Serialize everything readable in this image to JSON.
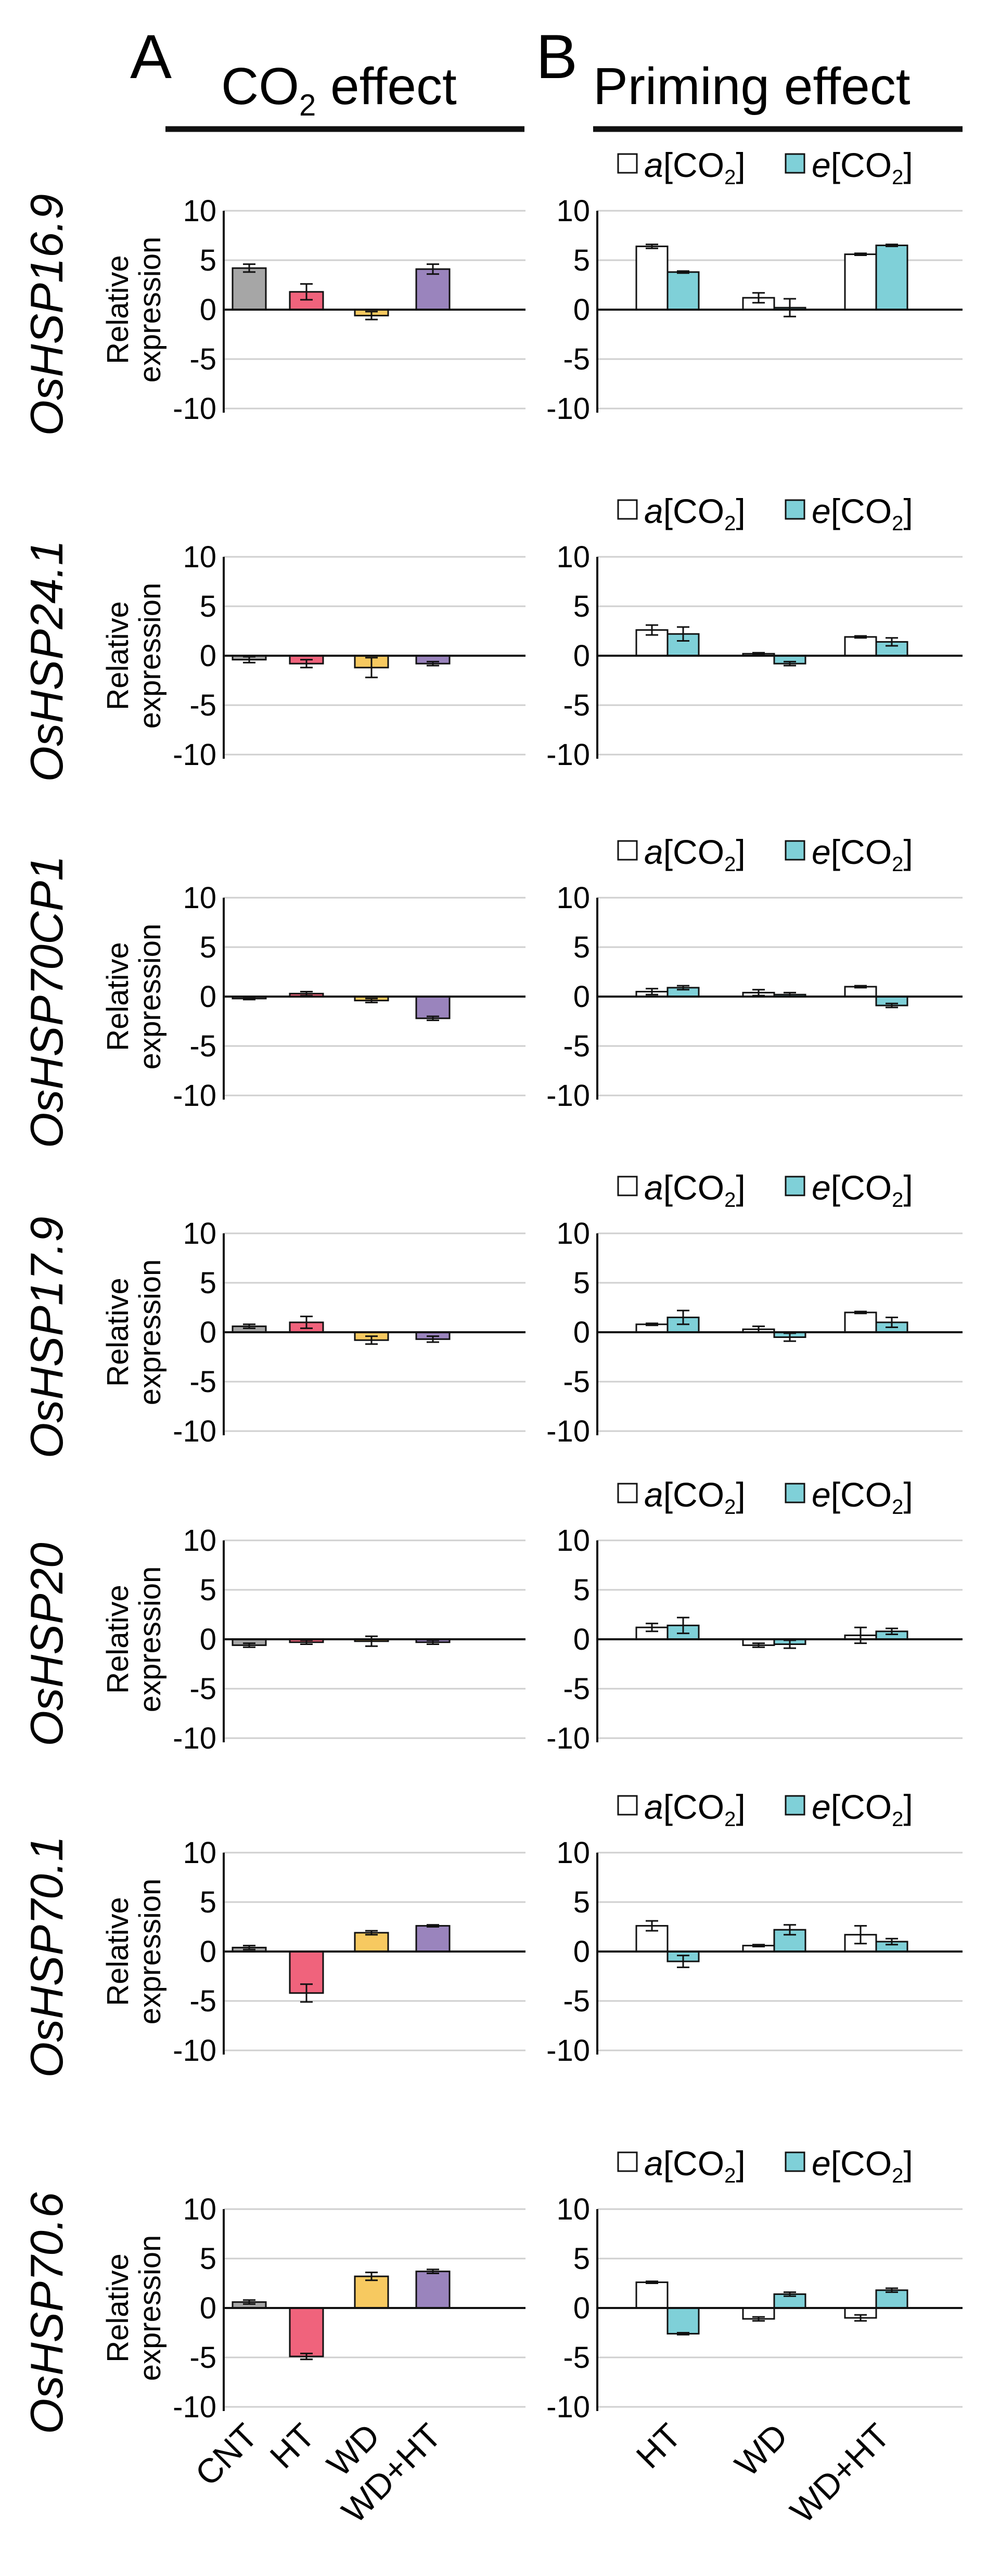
{
  "panels": {
    "A": {
      "letter": "A",
      "title_prefix": "CO",
      "title_sub": "2",
      "title_suffix": " effect"
    },
    "B": {
      "letter": "B",
      "title": "Priming effect"
    }
  },
  "legend": {
    "ambient": {
      "italic": "a",
      "bracket_open": "[CO",
      "sub": "2",
      "bracket_close": "]"
    },
    "elevated": {
      "italic": "e",
      "bracket_open": "[CO",
      "sub": "2",
      "bracket_close": "]"
    }
  },
  "y_axis_label_line1": "Relative",
  "y_axis_label_line2": "expression",
  "colors": {
    "CNT": "#a6a6a6",
    "HT": "#f0637c",
    "WD": "#f7c960",
    "WD+HT": "#9a84bd",
    "ambient": "#ffffff",
    "elevated": "#7fd0d8",
    "axis": "#111111",
    "grid": "#cfcfcf"
  },
  "chart_data": {
    "type": "bar",
    "ylim": [
      -10,
      10
    ],
    "yticks": [
      "10",
      "5",
      "0",
      "-5",
      "-10"
    ],
    "panelA_categories": [
      "CNT",
      "HT",
      "WD",
      "WD+HT"
    ],
    "panelB_categories": [
      "HT",
      "WD",
      "WD+HT"
    ],
    "genes": [
      {
        "name": "OsHSP16.9",
        "co2": {
          "values": [
            4.2,
            1.8,
            -0.6,
            4.1
          ],
          "errors": [
            0.4,
            0.8,
            0.4,
            0.5
          ]
        },
        "priming": {
          "ambient": [
            6.4,
            1.2,
            5.6
          ],
          "ambient_err": [
            0.2,
            0.5,
            0.1
          ],
          "elevated": [
            3.8,
            0.2,
            6.5
          ],
          "elevated_err": [
            0.1,
            0.9,
            0.1
          ]
        }
      },
      {
        "name": "OsHSP24.1",
        "co2": {
          "values": [
            -0.4,
            -0.8,
            -1.2,
            -0.8
          ],
          "errors": [
            0.3,
            0.4,
            1.0,
            0.2
          ]
        },
        "priming": {
          "ambient": [
            2.6,
            0.2,
            1.9
          ],
          "ambient_err": [
            0.5,
            0.1,
            0.1
          ],
          "elevated": [
            2.2,
            -0.8,
            1.4
          ],
          "elevated_err": [
            0.7,
            0.2,
            0.4
          ]
        }
      },
      {
        "name": "OsHSP70CP1",
        "co2": {
          "values": [
            -0.2,
            0.3,
            -0.4,
            -2.2
          ],
          "errors": [
            0.1,
            0.2,
            0.2,
            0.2
          ]
        },
        "priming": {
          "ambient": [
            0.5,
            0.4,
            1.0
          ],
          "ambient_err": [
            0.3,
            0.3,
            0.1
          ],
          "elevated": [
            0.9,
            0.2,
            -0.9
          ],
          "elevated_err": [
            0.2,
            0.2,
            0.2
          ]
        }
      },
      {
        "name": "OsHSP17.9",
        "co2": {
          "values": [
            0.6,
            1.0,
            -0.8,
            -0.7
          ],
          "errors": [
            0.2,
            0.6,
            0.4,
            0.3
          ]
        },
        "priming": {
          "ambient": [
            0.8,
            0.3,
            2.0
          ],
          "ambient_err": [
            0.1,
            0.3,
            0.1
          ],
          "elevated": [
            1.5,
            -0.5,
            1.0
          ],
          "elevated_err": [
            0.7,
            0.4,
            0.5
          ]
        }
      },
      {
        "name": "OsHSP20",
        "co2": {
          "values": [
            -0.6,
            -0.3,
            -0.2,
            -0.3
          ],
          "errors": [
            0.2,
            0.2,
            0.5,
            0.2
          ]
        },
        "priming": {
          "ambient": [
            1.2,
            -0.6,
            0.4
          ],
          "ambient_err": [
            0.4,
            0.2,
            0.8
          ],
          "elevated": [
            1.4,
            -0.5,
            0.8
          ],
          "elevated_err": [
            0.8,
            0.4,
            0.3
          ]
        }
      },
      {
        "name": "OsHSP70.1",
        "co2": {
          "values": [
            0.4,
            -4.2,
            1.9,
            2.6
          ],
          "errors": [
            0.2,
            0.9,
            0.2,
            0.1
          ]
        },
        "priming": {
          "ambient": [
            2.6,
            0.6,
            1.7
          ],
          "ambient_err": [
            0.5,
            0.1,
            0.9
          ],
          "elevated": [
            -1.0,
            2.2,
            1.0
          ],
          "elevated_err": [
            0.6,
            0.5,
            0.3
          ]
        }
      },
      {
        "name": "OsHSP70.6",
        "co2": {
          "values": [
            0.6,
            -4.9,
            3.2,
            3.7
          ],
          "errors": [
            0.2,
            0.3,
            0.4,
            0.2
          ]
        },
        "priming": {
          "ambient": [
            2.6,
            -1.1,
            -1.0
          ],
          "ambient_err": [
            0.1,
            0.2,
            0.3
          ],
          "elevated": [
            -2.6,
            1.4,
            1.8
          ],
          "elevated_err": [
            0.1,
            0.2,
            0.2
          ]
        }
      }
    ]
  }
}
